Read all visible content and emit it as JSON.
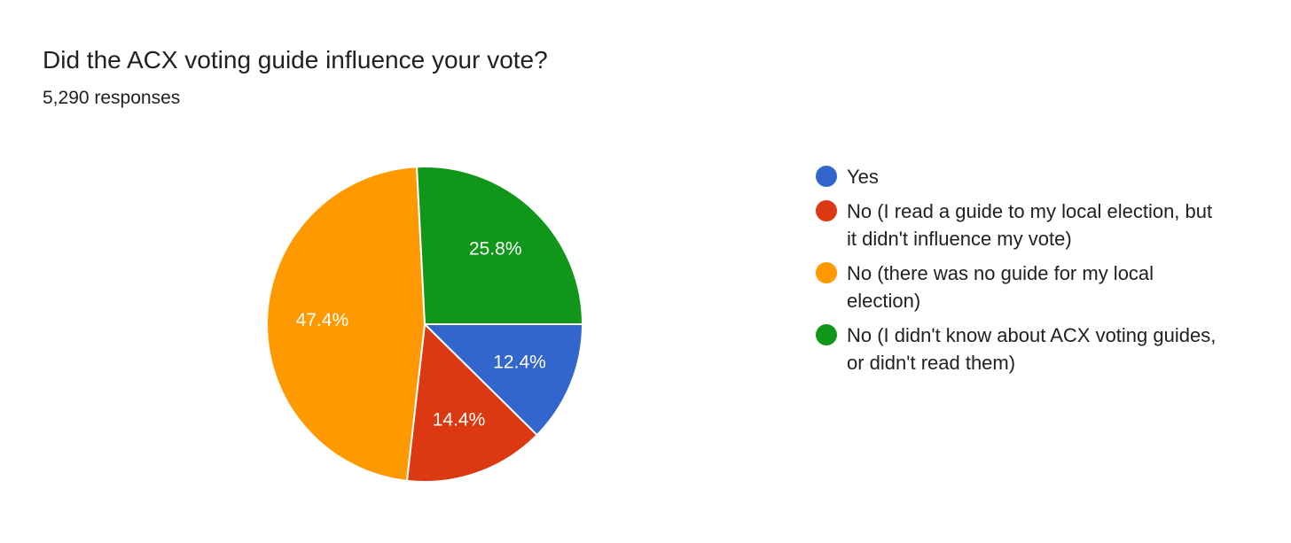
{
  "chart_data": {
    "type": "pie",
    "title": "Did the ACX voting guide influence your vote?",
    "subtitle": "5,290 responses",
    "categories": [
      "Yes",
      "No (I read a guide to my local election, but it didn't influence my vote)",
      "No (there was no guide for my local election)",
      "No (I didn't know about ACX voting guides, or didn't read them)"
    ],
    "values": [
      12.4,
      14.4,
      47.4,
      25.8
    ],
    "value_labels": [
      "12.4%",
      "14.4%",
      "47.4%",
      "25.8%"
    ],
    "colors": [
      "#3366cc",
      "#dc3912",
      "#ff9900",
      "#109618"
    ],
    "legend": "right"
  }
}
